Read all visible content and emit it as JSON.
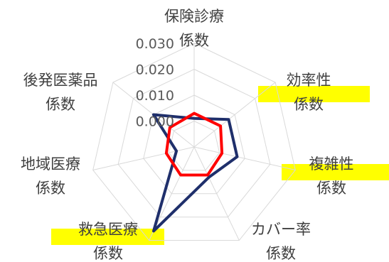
{
  "chart_data": {
    "type": "radar",
    "axes": [
      [
        "保険診療",
        "係数"
      ],
      [
        "効率性",
        "係数"
      ],
      [
        "複雑性",
        "係数"
      ],
      [
        "カバー率",
        "係数"
      ],
      [
        "救急医療",
        "係数"
      ],
      [
        "地域医療",
        "係数"
      ],
      [
        "後発医薬品",
        "係数"
      ]
    ],
    "highlighted_axes": [
      1,
      2,
      4
    ],
    "highlight_color": "#ffff00",
    "ticks": [
      "0.000",
      "0.010",
      "0.020",
      "0.030"
    ],
    "rmin": -0.01,
    "rmax": 0.03,
    "grid_levels": [
      -0.01,
      0.0,
      0.01,
      0.02,
      0.03
    ],
    "series": [
      {
        "color": "#1f2f6b",
        "values": [
          0.001,
          0.007,
          0.007,
          0.003,
          0.026,
          -0.003,
          0.01
        ]
      },
      {
        "color": "#ff0000",
        "values": [
          0.003,
          0.003,
          0.001,
          0.002,
          0.002,
          0.001,
          0.002
        ]
      }
    ]
  }
}
